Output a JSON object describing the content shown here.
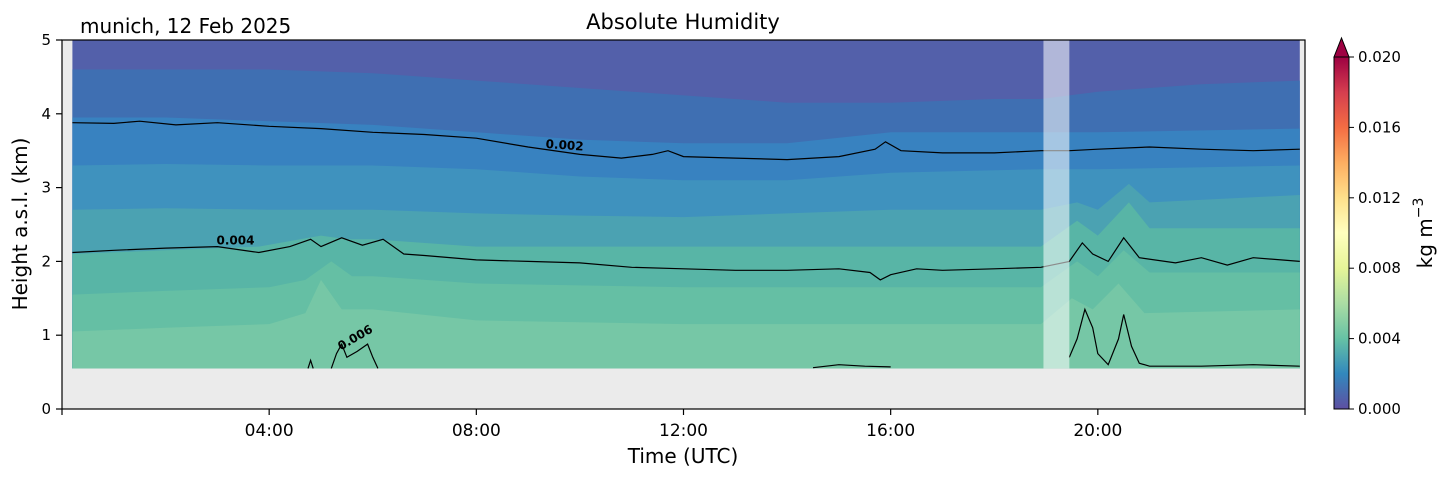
{
  "chart_data": {
    "type": "heatmap",
    "title": "Absolute Humidity",
    "site_date": "munich, 12 Feb 2025",
    "xlabel": "Time (UTC)",
    "ylabel": "Height a.s.l. (km)",
    "x_unit": "hours",
    "xlim": [
      0,
      24
    ],
    "ylim": [
      0,
      5
    ],
    "x_ticks": [
      4,
      8,
      12,
      16,
      20
    ],
    "x_tick_labels": [
      "04:00",
      "08:00",
      "12:00",
      "16:00",
      "20:00"
    ],
    "y_ticks": [
      0,
      1,
      2,
      3,
      4,
      5
    ],
    "y_tick_labels": [
      "0",
      "1",
      "2",
      "3",
      "4",
      "5"
    ],
    "colorbar": {
      "label": "kg m",
      "label_exp": "−3",
      "range": [
        0,
        0.02
      ],
      "extend": "max",
      "colormap": "Spectral_r",
      "ticks": [
        0,
        0.004,
        0.008,
        0.012,
        0.016,
        0.02
      ],
      "tick_labels": [
        "0.000",
        "0.004",
        "0.008",
        "0.012",
        "0.016",
        "0.020"
      ],
      "stops": [
        "#5e4fa2",
        "#3288bd",
        "#66c2a5",
        "#abdda4",
        "#e6f598",
        "#ffffbf",
        "#fee08b",
        "#fdae61",
        "#f46d43",
        "#d53e4f",
        "#9e0142"
      ]
    },
    "data_coverage": {
      "t_start": 0.2,
      "t_end": 23.9,
      "min_height_km": 0.55
    },
    "gap_shading": {
      "t_start": 18.95,
      "t_end": 19.45
    },
    "contour_labels": [
      {
        "text": "0.002",
        "t": 9.7,
        "h": 3.52,
        "angle": 4
      },
      {
        "text": "0.004",
        "t": 3.35,
        "h": 2.23,
        "angle": 0
      },
      {
        "text": "0.006",
        "t": 5.7,
        "h": 0.92,
        "angle": -30
      }
    ],
    "bands": [
      {
        "value": 0.0038,
        "color": "#76c7a6",
        "top": [
          [
            0.2,
            1.05
          ],
          [
            2,
            1.1
          ],
          [
            4,
            1.15
          ],
          [
            4.7,
            1.3
          ],
          [
            5.0,
            1.75
          ],
          [
            5.4,
            1.35
          ],
          [
            6,
            1.35
          ],
          [
            8,
            1.2
          ],
          [
            12,
            1.15
          ],
          [
            16,
            1.15
          ],
          [
            18.9,
            1.15
          ],
          [
            19.5,
            1.5
          ],
          [
            19.9,
            1.35
          ],
          [
            20.4,
            1.7
          ],
          [
            20.9,
            1.3
          ],
          [
            23.9,
            1.35
          ]
        ]
      },
      {
        "value": 0.0034,
        "color": "#65bfa4",
        "top": [
          [
            0.2,
            1.55
          ],
          [
            2,
            1.6
          ],
          [
            4,
            1.65
          ],
          [
            4.7,
            1.75
          ],
          [
            5.2,
            2.0
          ],
          [
            5.6,
            1.8
          ],
          [
            6,
            1.8
          ],
          [
            8,
            1.7
          ],
          [
            12,
            1.65
          ],
          [
            16,
            1.65
          ],
          [
            18.9,
            1.65
          ],
          [
            19.6,
            2.0
          ],
          [
            20,
            1.8
          ],
          [
            20.5,
            2.15
          ],
          [
            21,
            1.85
          ],
          [
            23.9,
            1.85
          ]
        ]
      },
      {
        "value": 0.003,
        "color": "#58b5a6",
        "top": [
          [
            0.2,
            2.1
          ],
          [
            2,
            2.15
          ],
          [
            3.8,
            2.2
          ],
          [
            4.6,
            2.3
          ],
          [
            5.0,
            2.35
          ],
          [
            5.5,
            2.3
          ],
          [
            6,
            2.3
          ],
          [
            8,
            2.2
          ],
          [
            12,
            2.2
          ],
          [
            15.5,
            2.2
          ],
          [
            18.9,
            2.2
          ],
          [
            19.6,
            2.55
          ],
          [
            20,
            2.35
          ],
          [
            20.6,
            2.8
          ],
          [
            21,
            2.45
          ],
          [
            23.9,
            2.45
          ]
        ]
      },
      {
        "value": 0.0026,
        "color": "#4ba2b2",
        "top": [
          [
            0.2,
            2.7
          ],
          [
            2,
            2.72
          ],
          [
            4,
            2.7
          ],
          [
            6,
            2.7
          ],
          [
            8,
            2.65
          ],
          [
            10,
            2.62
          ],
          [
            12,
            2.6
          ],
          [
            14,
            2.65
          ],
          [
            16,
            2.7
          ],
          [
            18.9,
            2.7
          ],
          [
            19.6,
            2.8
          ],
          [
            20,
            2.7
          ],
          [
            20.6,
            3.05
          ],
          [
            21,
            2.8
          ],
          [
            23.9,
            2.9
          ]
        ]
      },
      {
        "value": 0.0022,
        "color": "#3f92be",
        "top": [
          [
            0.2,
            3.3
          ],
          [
            2,
            3.32
          ],
          [
            4,
            3.3
          ],
          [
            6,
            3.3
          ],
          [
            8,
            3.25
          ],
          [
            10,
            3.15
          ],
          [
            12,
            3.1
          ],
          [
            14,
            3.1
          ],
          [
            16,
            3.2
          ],
          [
            18.9,
            3.25
          ],
          [
            20,
            3.25
          ],
          [
            23.9,
            3.3
          ]
        ]
      },
      {
        "value": 0.0018,
        "color": "#3882c0",
        "top": [
          [
            0.2,
            3.95
          ],
          [
            2,
            3.95
          ],
          [
            4,
            3.9
          ],
          [
            6,
            3.85
          ],
          [
            8,
            3.75
          ],
          [
            10,
            3.65
          ],
          [
            12,
            3.6
          ],
          [
            14,
            3.6
          ],
          [
            16,
            3.75
          ],
          [
            18.9,
            3.75
          ],
          [
            20,
            3.75
          ],
          [
            23.9,
            3.8
          ]
        ]
      },
      {
        "value": 0.0014,
        "color": "#3f6fb2",
        "top": [
          [
            0.2,
            4.6
          ],
          [
            2,
            4.6
          ],
          [
            4,
            4.6
          ],
          [
            6,
            4.55
          ],
          [
            8,
            4.45
          ],
          [
            10,
            4.35
          ],
          [
            12,
            4.25
          ],
          [
            14,
            4.15
          ],
          [
            16,
            4.15
          ],
          [
            18,
            4.2
          ],
          [
            18.9,
            4.2
          ],
          [
            20,
            4.3
          ],
          [
            22,
            4.4
          ],
          [
            23.9,
            4.45
          ]
        ]
      },
      {
        "value": 0.001,
        "color": "#5360aa",
        "top": [
          [
            0.2,
            5.0
          ],
          [
            23.9,
            5.0
          ]
        ]
      }
    ],
    "contours": [
      {
        "level": 0.002,
        "points": [
          [
            0.2,
            3.88
          ],
          [
            1.0,
            3.87
          ],
          [
            1.5,
            3.9
          ],
          [
            2.2,
            3.85
          ],
          [
            3,
            3.88
          ],
          [
            4,
            3.83
          ],
          [
            5,
            3.8
          ],
          [
            6,
            3.75
          ],
          [
            7,
            3.72
          ],
          [
            8,
            3.67
          ],
          [
            9,
            3.55
          ],
          [
            10,
            3.45
          ],
          [
            10.8,
            3.4
          ],
          [
            11.4,
            3.45
          ],
          [
            11.7,
            3.5
          ],
          [
            12,
            3.42
          ],
          [
            13,
            3.4
          ],
          [
            14,
            3.38
          ],
          [
            15,
            3.42
          ],
          [
            15.7,
            3.52
          ],
          [
            15.9,
            3.62
          ],
          [
            16.2,
            3.5
          ],
          [
            17,
            3.47
          ],
          [
            18,
            3.47
          ],
          [
            18.9,
            3.5
          ],
          [
            19.45,
            3.5
          ],
          [
            20,
            3.52
          ],
          [
            21,
            3.55
          ],
          [
            22,
            3.52
          ],
          [
            23,
            3.5
          ],
          [
            23.9,
            3.52
          ]
        ]
      },
      {
        "level": 0.004,
        "points": [
          [
            0.2,
            2.12
          ],
          [
            1,
            2.15
          ],
          [
            2,
            2.18
          ],
          [
            3,
            2.2
          ],
          [
            3.8,
            2.12
          ],
          [
            4.4,
            2.2
          ],
          [
            4.8,
            2.3
          ],
          [
            5.0,
            2.2
          ],
          [
            5.4,
            2.32
          ],
          [
            5.8,
            2.22
          ],
          [
            6.2,
            2.3
          ],
          [
            6.6,
            2.1
          ],
          [
            7,
            2.08
          ],
          [
            8,
            2.02
          ],
          [
            9,
            2.0
          ],
          [
            10,
            1.98
          ],
          [
            11,
            1.92
          ],
          [
            12,
            1.9
          ],
          [
            13,
            1.88
          ],
          [
            14,
            1.88
          ],
          [
            15,
            1.9
          ],
          [
            15.6,
            1.85
          ],
          [
            15.8,
            1.75
          ],
          [
            16,
            1.82
          ],
          [
            16.5,
            1.9
          ],
          [
            17,
            1.88
          ],
          [
            18,
            1.9
          ],
          [
            18.9,
            1.92
          ],
          [
            19.45,
            2.0
          ],
          [
            19.7,
            2.25
          ],
          [
            19.9,
            2.1
          ],
          [
            20.2,
            2.0
          ],
          [
            20.5,
            2.32
          ],
          [
            20.8,
            2.05
          ],
          [
            21.5,
            1.98
          ],
          [
            22,
            2.05
          ],
          [
            22.5,
            1.95
          ],
          [
            23,
            2.05
          ],
          [
            23.9,
            2.0
          ]
        ]
      },
      {
        "level": 0.006,
        "points": [
          [
            5.2,
            0.55
          ],
          [
            5.3,
            0.75
          ],
          [
            5.4,
            0.88
          ],
          [
            5.5,
            0.7
          ],
          [
            5.7,
            0.78
          ],
          [
            5.9,
            0.88
          ],
          [
            6.0,
            0.7
          ],
          [
            6.1,
            0.55
          ]
        ]
      },
      {
        "level": 0.006,
        "points": [
          [
            19.45,
            0.7
          ],
          [
            19.6,
            0.95
          ],
          [
            19.75,
            1.35
          ],
          [
            19.9,
            1.1
          ],
          [
            20.0,
            0.75
          ],
          [
            20.2,
            0.6
          ],
          [
            20.4,
            0.95
          ],
          [
            20.5,
            1.28
          ],
          [
            20.65,
            0.85
          ],
          [
            20.8,
            0.62
          ],
          [
            21,
            0.58
          ],
          [
            22,
            0.58
          ],
          [
            23,
            0.6
          ],
          [
            23.9,
            0.58
          ]
        ]
      },
      {
        "level": 0.006,
        "points": [
          [
            14.5,
            0.56
          ],
          [
            15,
            0.6
          ],
          [
            15.5,
            0.58
          ],
          [
            16,
            0.57
          ]
        ]
      },
      {
        "level": 0.006,
        "points": [
          [
            4.75,
            0.55
          ],
          [
            4.8,
            0.66
          ],
          [
            4.85,
            0.55
          ]
        ]
      }
    ]
  }
}
